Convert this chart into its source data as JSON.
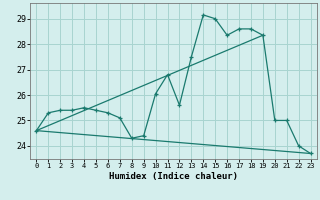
{
  "xlabel": "Humidex (Indice chaleur)",
  "bg_color": "#d4eeed",
  "grid_color": "#a8d4d0",
  "line_color": "#1a7a6e",
  "xlim": [
    -0.5,
    23.5
  ],
  "ylim": [
    23.5,
    29.6
  ],
  "xticks": [
    0,
    1,
    2,
    3,
    4,
    5,
    6,
    7,
    8,
    9,
    10,
    11,
    12,
    13,
    14,
    15,
    16,
    17,
    18,
    19,
    20,
    21,
    22,
    23
  ],
  "yticks": [
    24,
    25,
    26,
    27,
    28,
    29
  ],
  "series": [
    [
      0,
      24.6
    ],
    [
      1,
      25.3
    ],
    [
      2,
      25.4
    ],
    [
      3,
      25.4
    ],
    [
      4,
      25.5
    ],
    [
      5,
      25.4
    ],
    [
      6,
      25.3
    ],
    [
      7,
      25.1
    ],
    [
      8,
      24.3
    ],
    [
      9,
      24.4
    ],
    [
      10,
      26.05
    ],
    [
      11,
      26.8
    ],
    [
      12,
      25.6
    ],
    [
      13,
      27.5
    ],
    [
      14,
      29.15
    ],
    [
      15,
      29.0
    ],
    [
      16,
      28.35
    ],
    [
      17,
      28.6
    ],
    [
      18,
      28.6
    ],
    [
      19,
      28.35
    ],
    [
      20,
      25.0
    ],
    [
      21,
      25.0
    ],
    [
      22,
      24.0
    ],
    [
      23,
      23.7
    ]
  ],
  "line_flat": [
    [
      0,
      24.6
    ],
    [
      23,
      23.7
    ]
  ],
  "line_diag": [
    [
      0,
      24.6
    ],
    [
      19,
      28.35
    ]
  ]
}
